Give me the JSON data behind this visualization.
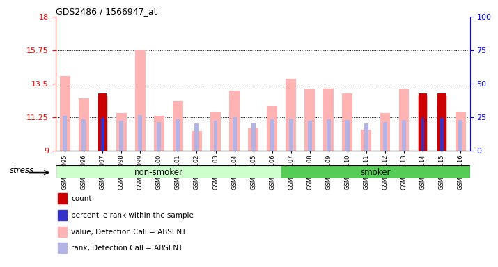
{
  "title": "GDS2486 / 1566947_at",
  "samples": [
    "GSM101095",
    "GSM101096",
    "GSM101097",
    "GSM101098",
    "GSM101099",
    "GSM101100",
    "GSM101101",
    "GSM101102",
    "GSM101103",
    "GSM101104",
    "GSM101105",
    "GSM101106",
    "GSM101107",
    "GSM101108",
    "GSM101109",
    "GSM101110",
    "GSM101111",
    "GSM101112",
    "GSM101113",
    "GSM101114",
    "GSM101115",
    "GSM101116"
  ],
  "value_absent": [
    14.0,
    12.5,
    12.7,
    11.5,
    15.75,
    11.3,
    12.3,
    10.3,
    11.6,
    13.0,
    10.5,
    12.0,
    13.8,
    13.1,
    13.15,
    12.8,
    10.4,
    11.5,
    13.1,
    12.7,
    12.7,
    11.6
  ],
  "rank_absent": [
    11.3,
    11.1,
    11.15,
    11.0,
    11.35,
    10.9,
    11.1,
    10.8,
    11.0,
    11.25,
    10.85,
    11.1,
    11.15,
    11.0,
    11.1,
    11.05,
    10.8,
    10.9,
    11.05,
    11.15,
    11.15,
    11.05
  ],
  "count_val": [
    0,
    0,
    12.8,
    0,
    0,
    0,
    0,
    0,
    0,
    0,
    0,
    0,
    0,
    0,
    0,
    0,
    0,
    0,
    0,
    12.8,
    12.8,
    0
  ],
  "pct_rank_val": [
    0,
    0,
    11.2,
    0,
    0,
    0,
    0,
    0,
    0,
    0,
    0,
    0,
    0,
    0,
    0,
    0,
    0,
    0,
    0,
    11.2,
    11.2,
    0
  ],
  "ylim_left": [
    9,
    18
  ],
  "ylim_right": [
    0,
    100
  ],
  "yticks_left": [
    9,
    11.25,
    13.5,
    15.75,
    18
  ],
  "yticks_right": [
    0,
    25,
    50,
    75,
    100
  ],
  "hlines": [
    11.25,
    13.5,
    15.75
  ],
  "color_value_absent": "#ffb3b3",
  "color_rank_absent": "#b3b3e6",
  "color_count": "#cc0000",
  "color_pct_rank": "#3333cc",
  "bg_plot": "#ffffff",
  "color_nonsmoker": "#ccffcc",
  "color_smoker": "#55cc55",
  "nonsmoker_label": "non-smoker",
  "smoker_label": "smoker",
  "stress_label": "stress",
  "legend_items": [
    [
      "#cc0000",
      "count"
    ],
    [
      "#3333cc",
      "percentile rank within the sample"
    ],
    [
      "#ffb3b3",
      "value, Detection Call = ABSENT"
    ],
    [
      "#b3b3e6",
      "rank, Detection Call = ABSENT"
    ]
  ]
}
